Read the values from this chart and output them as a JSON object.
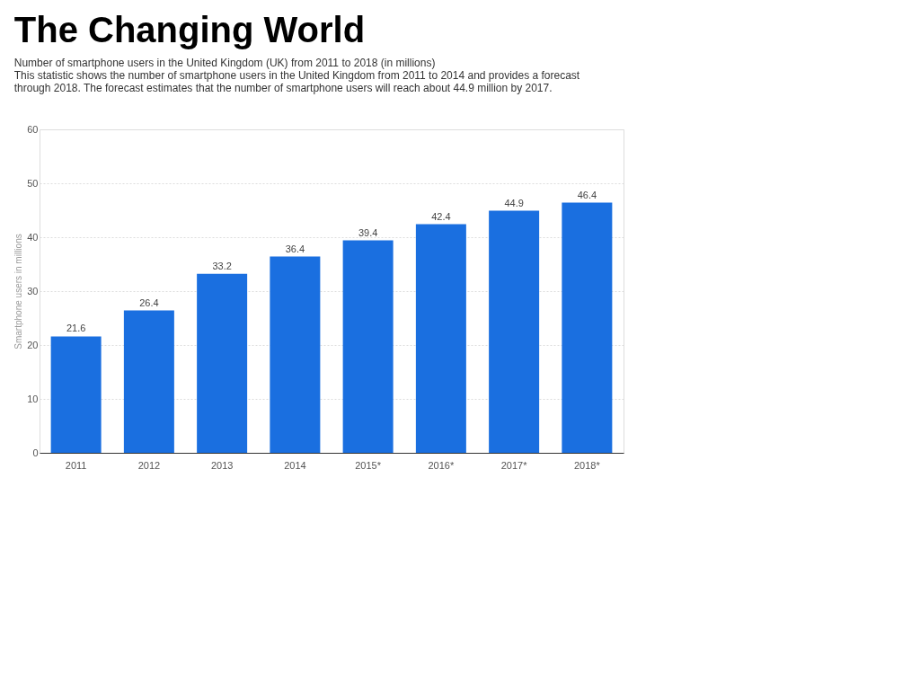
{
  "chart_data": {
    "type": "bar",
    "title": "The Changing World",
    "subtitle": "Number of smartphone users in the United Kingdom (UK) from 2011 to 2018 (in millions)",
    "annotations": [
      "This statistic shows the number of smartphone users in the United Kingdom from 2011 to 2014 and provides a forecast through 2018. The forecast estimates that the number of smartphone users will reach about 44.9 million by 2017."
    ],
    "categories": [
      "2011",
      "2012",
      "2013",
      "2014",
      "2015*",
      "2016*",
      "2017*",
      "2018*"
    ],
    "values": [
      21.6,
      26.4,
      33.2,
      36.4,
      39.4,
      42.4,
      44.9,
      46.4
    ],
    "color": "#1a6fe0",
    "ylabel": "Smartphone users in millions",
    "ylim": [
      0,
      60
    ],
    "yticks": [
      0,
      10,
      20,
      30,
      40,
      50,
      60
    ],
    "grid": "y",
    "data_labels": true
  }
}
